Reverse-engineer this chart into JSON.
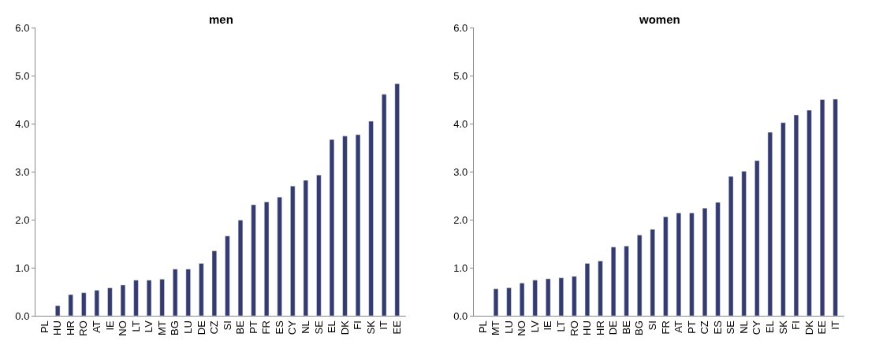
{
  "chart_data": [
    {
      "type": "bar",
      "title": "men",
      "categories": [
        "PL",
        "HU",
        "HR",
        "RO",
        "AT",
        "IE",
        "NO",
        "LT",
        "LV",
        "MT",
        "BG",
        "LU",
        "DE",
        "CZ",
        "SI",
        "BE",
        "PT",
        "FR",
        "ES",
        "CY",
        "NL",
        "SE",
        "EL",
        "DK",
        "FI",
        "SK",
        "IT",
        "EE"
      ],
      "values": [
        null,
        0.21,
        0.44,
        0.48,
        0.53,
        0.58,
        0.64,
        0.74,
        0.74,
        0.76,
        0.97,
        0.97,
        1.09,
        1.35,
        1.66,
        1.99,
        2.31,
        2.37,
        2.47,
        2.7,
        2.82,
        2.93,
        3.67,
        3.74,
        3.77,
        4.05,
        4.61,
        4.83
      ],
      "color": "#353b6e",
      "ylim": [
        0,
        6
      ],
      "yticks": [
        {
          "value": 0,
          "label": "0.0"
        },
        {
          "value": 1,
          "label": "1.0"
        },
        {
          "value": 2,
          "label": "2.0"
        },
        {
          "value": 3,
          "label": "3.0"
        },
        {
          "value": 4,
          "label": "4.0"
        },
        {
          "value": 5,
          "label": "5.0"
        },
        {
          "value": 6,
          "label": "6.0"
        }
      ]
    },
    {
      "type": "bar",
      "title": "women",
      "categories": [
        "PL",
        "MT",
        "LU",
        "NO",
        "LV",
        "IE",
        "LT",
        "RO",
        "HU",
        "HR",
        "DE",
        "BE",
        "BG",
        "SI",
        "FR",
        "AT",
        "PT",
        "CZ",
        "ES",
        "SE",
        "NL",
        "CY",
        "EL",
        "SK",
        "FI",
        "DK",
        "EE",
        "IT"
      ],
      "values": [
        null,
        0.56,
        0.58,
        0.68,
        0.74,
        0.77,
        0.79,
        0.82,
        1.09,
        1.14,
        1.43,
        1.45,
        1.68,
        1.8,
        2.06,
        2.14,
        2.14,
        2.24,
        2.36,
        2.9,
        3.01,
        3.23,
        3.82,
        4.02,
        4.18,
        4.28,
        4.5,
        4.51
      ],
      "color": "#353b6e",
      "ylim": [
        0,
        6
      ],
      "yticks": [
        {
          "value": 0,
          "label": "0.0"
        },
        {
          "value": 1,
          "label": "1.0"
        },
        {
          "value": 2,
          "label": "2.0"
        },
        {
          "value": 3,
          "label": "3.0"
        },
        {
          "value": 4,
          "label": "4.0"
        },
        {
          "value": 5,
          "label": "5.0"
        },
        {
          "value": 6,
          "label": "6.0"
        }
      ]
    }
  ]
}
